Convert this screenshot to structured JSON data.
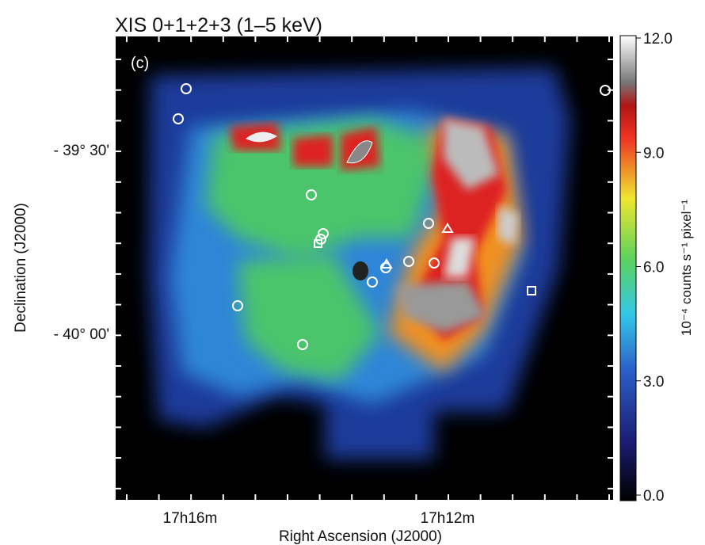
{
  "figure": {
    "title": "XIS 0+1+2+3 (1–5 keV)",
    "panel_label": "(c)",
    "x_axis": {
      "label": "Right Ascension (J2000)",
      "tick_labels": [
        "17h16m",
        "17h12m"
      ]
    },
    "y_axis": {
      "label": "Declination (J2000)",
      "tick_labels": [
        "- 39° 30'",
        "- 40° 00'"
      ]
    },
    "colorbar": {
      "label": "10⁻⁴ counts s⁻¹ pixel⁻¹",
      "tick_labels": [
        "12.0",
        "9.0",
        "6.0",
        "3.0",
        "0.0"
      ]
    }
  }
}
